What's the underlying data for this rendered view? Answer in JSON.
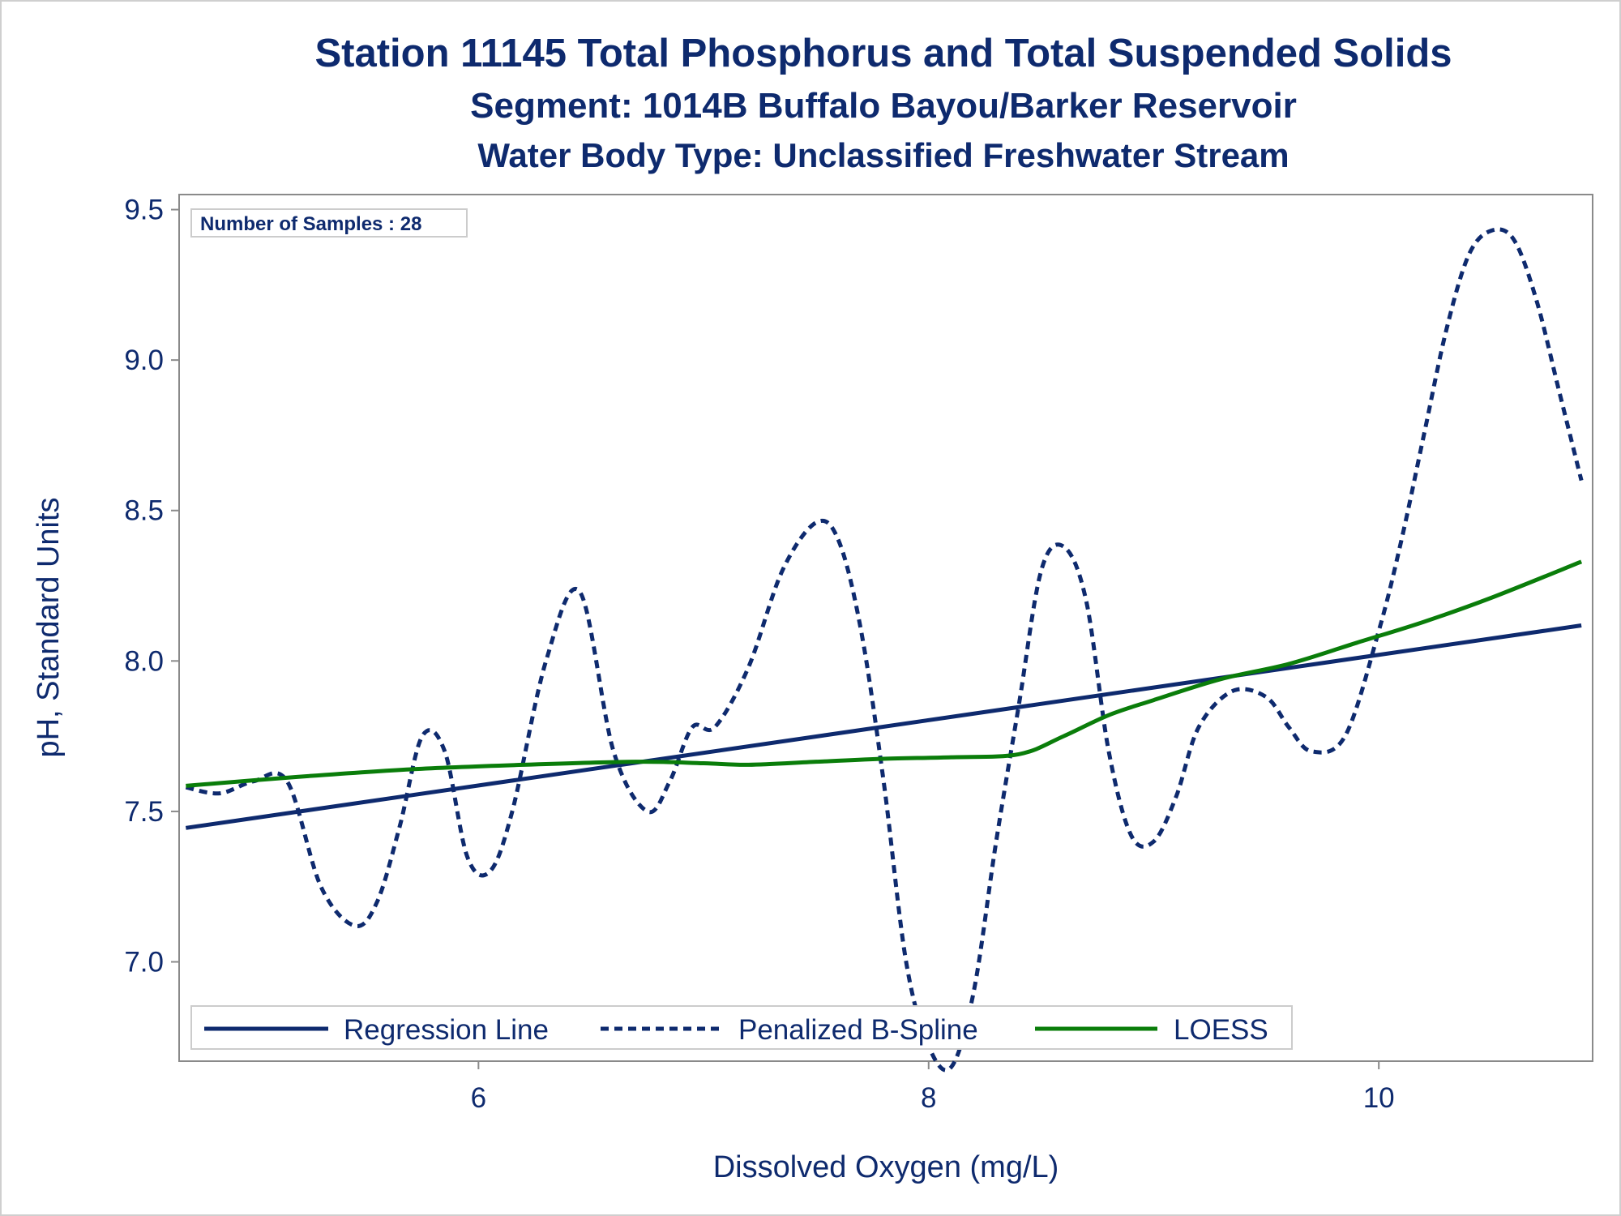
{
  "colors": {
    "text": "#0e2a6e",
    "regression": "#0e2a6e",
    "spline": "#0e2a6e",
    "loess": "#0a7d0a",
    "axis": "#8a8a8a"
  },
  "chart_data": {
    "type": "line",
    "title": "Station 11145  Total Phosphorus and Total Suspended Solids",
    "subtitle": "Segment: 1014B  Buffalo Bayou/Barker Reservoir",
    "subtitle2": "Water Body Type: Unclassified Freshwater Stream",
    "xlabel": "Dissolved Oxygen (mg/L)",
    "ylabel": "pH, Standard Units",
    "xlim": [
      4.67,
      10.95
    ],
    "ylim": [
      6.67,
      9.55
    ],
    "xticks": [
      6,
      8,
      10
    ],
    "yticks": [
      7.0,
      7.5,
      8.0,
      8.5,
      9.0,
      9.5
    ],
    "xtick_labels": [
      "6",
      "8",
      "10"
    ],
    "ytick_labels": [
      "7.0",
      "7.5",
      "8.0",
      "8.5",
      "9.0",
      "9.5"
    ],
    "grid": false,
    "annotation": "Number of Samples : 28",
    "legend_position": "bottom-left",
    "series": [
      {
        "name": "Regression Line",
        "style": "solid",
        "x": [
          4.7,
          10.9
        ],
        "y": [
          7.445,
          8.118
        ]
      },
      {
        "name": "Penalized B-Spline",
        "style": "dashed",
        "x": [
          4.7,
          4.85,
          5.0,
          5.15,
          5.3,
          5.45,
          5.55,
          5.65,
          5.75,
          5.85,
          5.95,
          6.05,
          6.15,
          6.3,
          6.45,
          6.6,
          6.75,
          6.85,
          6.95,
          7.05,
          7.2,
          7.35,
          7.5,
          7.6,
          7.7,
          7.8,
          7.9,
          8.0,
          8.1,
          8.2,
          8.3,
          8.4,
          8.5,
          8.6,
          8.7,
          8.8,
          8.9,
          9.0,
          9.1,
          9.2,
          9.35,
          9.5,
          9.6,
          9.7,
          9.85,
          10.0,
          10.1,
          10.2,
          10.3,
          10.4,
          10.5,
          10.6,
          10.7,
          10.8,
          10.9
        ],
        "y": [
          7.58,
          7.56,
          7.6,
          7.6,
          7.25,
          7.12,
          7.2,
          7.45,
          7.75,
          7.7,
          7.35,
          7.3,
          7.5,
          8.0,
          8.23,
          7.7,
          7.5,
          7.6,
          7.78,
          7.78,
          7.98,
          8.3,
          8.46,
          8.4,
          8.1,
          7.6,
          7.0,
          6.72,
          6.65,
          6.9,
          7.4,
          7.85,
          8.3,
          8.38,
          8.2,
          7.7,
          7.42,
          7.4,
          7.55,
          7.78,
          7.9,
          7.88,
          7.78,
          7.7,
          7.75,
          8.1,
          8.4,
          8.75,
          9.1,
          9.35,
          9.43,
          9.4,
          9.2,
          8.9,
          8.6
        ]
      },
      {
        "name": "LOESS",
        "style": "solid",
        "x": [
          4.7,
          5.2,
          5.7,
          6.2,
          6.7,
          7.0,
          7.2,
          7.5,
          7.8,
          8.1,
          8.4,
          8.6,
          8.8,
          9.0,
          9.3,
          9.6,
          9.9,
          10.2,
          10.5,
          10.9
        ],
        "y": [
          7.585,
          7.615,
          7.64,
          7.655,
          7.665,
          7.66,
          7.655,
          7.665,
          7.675,
          7.68,
          7.69,
          7.75,
          7.82,
          7.87,
          7.94,
          7.99,
          8.06,
          8.13,
          8.21,
          8.33
        ]
      }
    ]
  }
}
